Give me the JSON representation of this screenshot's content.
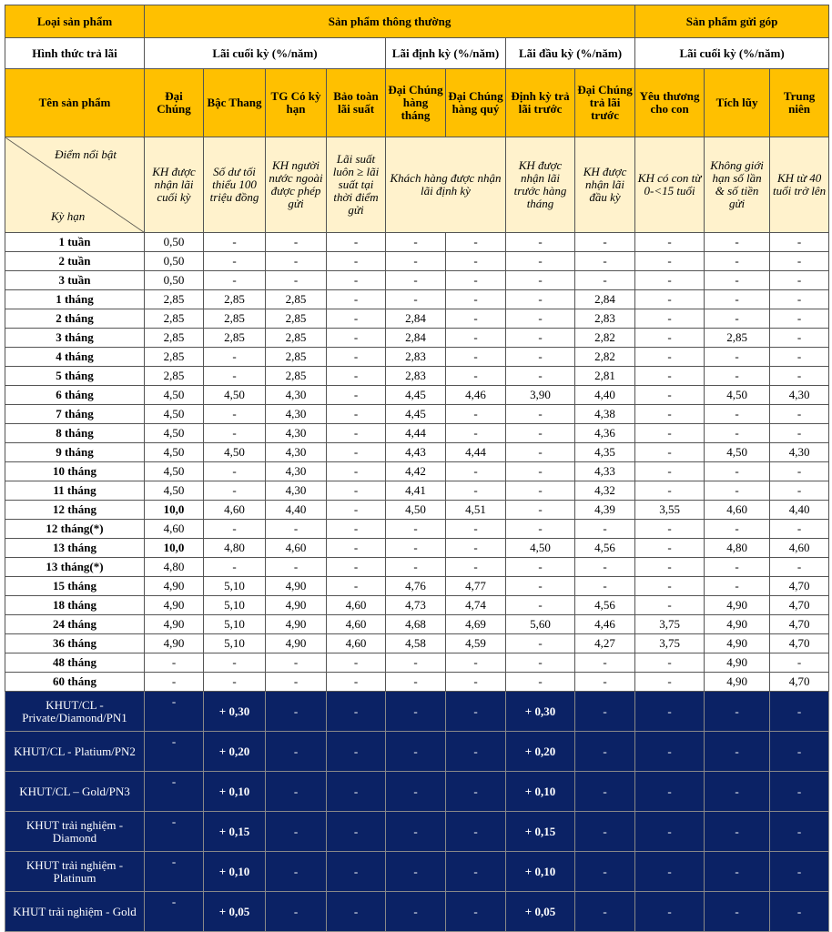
{
  "header": {
    "row1": {
      "label": "Loại sản phẩm",
      "regular": "Sản phẩm thông thường",
      "installment": "Sản phẩm gửi góp"
    },
    "row2": {
      "label": "Hình thức trả lãi",
      "groups": [
        "Lãi cuối kỳ (%/năm)",
        "Lãi định kỳ (%/năm)",
        "Lãi đầu kỳ (%/năm)",
        "Lãi cuối kỳ (%/năm)"
      ]
    },
    "row3": {
      "label": "Tên sản phẩm",
      "products": [
        "Đại Chúng",
        "Bậc Thang",
        "TG Có kỳ hạn",
        "Bảo toàn lãi suất",
        "Đại Chúng hàng tháng",
        "Đại Chúng hàng quý",
        "Định kỳ trả lãi trước",
        "Đại Chúng trả lãi trước",
        "Yêu thương cho con",
        "Tích lũy",
        "Trung niên"
      ]
    },
    "row4": {
      "highlight_label": "Điểm nổi bật",
      "term_label": "Kỳ hạn",
      "highlights": [
        "KH được nhận lãi cuối kỳ",
        "Số dư tối thiểu 100 triệu đồng",
        "KH người nước ngoài được phép gửi",
        "Lãi suất luôn ≥ lãi suất tại thời điểm gửi",
        "Khách hàng được nhận lãi định kỳ",
        "KH được nhận lãi trước hàng tháng",
        "KH được nhận lãi đầu kỳ",
        "KH có con từ 0-<15 tuổi",
        "Không giới hạn số lần & số tiền gửi",
        "KH từ 40 tuổi trở lên"
      ]
    }
  },
  "rows": [
    {
      "term": "1 tuần",
      "values": [
        "0,50",
        "-",
        "-",
        "-",
        "-",
        "-",
        "-",
        "-",
        "-",
        "-",
        "-"
      ]
    },
    {
      "term": "2 tuần",
      "values": [
        "0,50",
        "-",
        "-",
        "-",
        "-",
        "-",
        "-",
        "-",
        "-",
        "-",
        "-"
      ]
    },
    {
      "term": "3 tuần",
      "values": [
        "0,50",
        "-",
        "-",
        "-",
        "-",
        "-",
        "-",
        "-",
        "-",
        "-",
        "-"
      ]
    },
    {
      "term": "1 tháng",
      "values": [
        "2,85",
        "2,85",
        "2,85",
        "-",
        "-",
        "-",
        "-",
        "2,84",
        "-",
        "-",
        "-"
      ]
    },
    {
      "term": "2 tháng",
      "values": [
        "2,85",
        "2,85",
        "2,85",
        "-",
        "2,84",
        "-",
        "-",
        "2,83",
        "-",
        "-",
        "-"
      ]
    },
    {
      "term": "3 tháng",
      "values": [
        "2,85",
        "2,85",
        "2,85",
        "-",
        "2,84",
        "-",
        "-",
        "2,82",
        "-",
        "2,85",
        "-"
      ]
    },
    {
      "term": "4 tháng",
      "values": [
        "2,85",
        "-",
        "2,85",
        "-",
        "2,83",
        "-",
        "-",
        "2,82",
        "-",
        "-",
        "-"
      ]
    },
    {
      "term": "5 tháng",
      "values": [
        "2,85",
        "-",
        "2,85",
        "-",
        "2,83",
        "-",
        "-",
        "2,81",
        "-",
        "-",
        "-"
      ]
    },
    {
      "term": "6 tháng",
      "values": [
        "4,50",
        "4,50",
        "4,30",
        "-",
        "4,45",
        "4,46",
        "3,90",
        "4,40",
        "-",
        "4,50",
        "4,30"
      ]
    },
    {
      "term": "7 tháng",
      "values": [
        "4,50",
        "-",
        "4,30",
        "-",
        "4,45",
        "-",
        "-",
        "4,38",
        "-",
        "-",
        "-"
      ]
    },
    {
      "term": "8 tháng",
      "values": [
        "4,50",
        "-",
        "4,30",
        "-",
        "4,44",
        "-",
        "-",
        "4,36",
        "-",
        "-",
        "-"
      ]
    },
    {
      "term": "9 tháng",
      "values": [
        "4,50",
        "4,50",
        "4,30",
        "-",
        "4,43",
        "4,44",
        "-",
        "4,35",
        "-",
        "4,50",
        "4,30"
      ]
    },
    {
      "term": "10 tháng",
      "values": [
        "4,50",
        "-",
        "4,30",
        "-",
        "4,42",
        "-",
        "-",
        "4,33",
        "-",
        "-",
        "-"
      ]
    },
    {
      "term": "11 tháng",
      "values": [
        "4,50",
        "-",
        "4,30",
        "-",
        "4,41",
        "-",
        "-",
        "4,32",
        "-",
        "-",
        "-"
      ]
    },
    {
      "term": "12 tháng",
      "values": [
        "10,0",
        "4,60",
        "4,40",
        "-",
        "4,50",
        "4,51",
        "-",
        "4,39",
        "3,55",
        "4,60",
        "4,40"
      ]
    },
    {
      "term": "12 tháng(*)",
      "values": [
        "4,60",
        "-",
        "-",
        "-",
        "-",
        "-",
        "-",
        "-",
        "-",
        "-",
        "-"
      ]
    },
    {
      "term": "13 tháng",
      "values": [
        "10,0",
        "4,80",
        "4,60",
        "-",
        "-",
        "-",
        "4,50",
        "4,56",
        "-",
        "4,80",
        "4,60"
      ]
    },
    {
      "term": "13 tháng(*)",
      "values": [
        "4,80",
        "-",
        "-",
        "-",
        "-",
        "-",
        "-",
        "-",
        "-",
        "-",
        "-"
      ]
    },
    {
      "term": "15 tháng",
      "values": [
        "4,90",
        "5,10",
        "4,90",
        "-",
        "4,76",
        "4,77",
        "-",
        "-",
        "-",
        "-",
        "4,70"
      ]
    },
    {
      "term": "18 tháng",
      "values": [
        "4,90",
        "5,10",
        "4,90",
        "4,60",
        "4,73",
        "4,74",
        "-",
        "4,56",
        "-",
        "4,90",
        "4,70"
      ]
    },
    {
      "term": "24 tháng",
      "values": [
        "4,90",
        "5,10",
        "4,90",
        "4,60",
        "4,68",
        "4,69",
        "5,60",
        "4,46",
        "3,75",
        "4,90",
        "4,70"
      ]
    },
    {
      "term": "36 tháng",
      "values": [
        "4,90",
        "5,10",
        "4,90",
        "4,60",
        "4,58",
        "4,59",
        "-",
        "4,27",
        "3,75",
        "4,90",
        "4,70"
      ]
    },
    {
      "term": "48 tháng",
      "values": [
        "-",
        "-",
        "-",
        "-",
        "-",
        "-",
        "-",
        "-",
        "-",
        "4,90",
        "-"
      ]
    },
    {
      "term": "60 tháng",
      "values": [
        "-",
        "-",
        "-",
        "-",
        "-",
        "-",
        "-",
        "-",
        "-",
        "4,90",
        "4,70"
      ]
    }
  ],
  "tiers": [
    {
      "name": "KHUT/CL - Private/Diamond/PN1",
      "values": [
        "-",
        "+ 0,30",
        "-",
        "-",
        "-",
        "-",
        "+ 0,30",
        "-",
        "-",
        "-",
        "-"
      ]
    },
    {
      "name": "KHUT/CL - Platium/PN2",
      "values": [
        "-",
        "+ 0,20",
        "-",
        "-",
        "-",
        "-",
        "+ 0,20",
        "-",
        "-",
        "-",
        "-"
      ]
    },
    {
      "name": "KHUT/CL – Gold/PN3",
      "values": [
        "-",
        "+ 0,10",
        "-",
        "-",
        "-",
        "-",
        "+ 0,10",
        "-",
        "-",
        "-",
        "-"
      ]
    },
    {
      "name": "KHUT trải nghiệm - Diamond",
      "values": [
        "-",
        "+ 0,15",
        "-",
        "-",
        "-",
        "-",
        "+ 0,15",
        "-",
        "-",
        "-",
        "-"
      ]
    },
    {
      "name": "KHUT trải nghiệm - Platinum",
      "values": [
        "-",
        "+ 0,10",
        "-",
        "-",
        "-",
        "-",
        "+ 0,10",
        "-",
        "-",
        "-",
        "-"
      ]
    },
    {
      "name": "KHUT trải nghiệm - Gold",
      "values": [
        "-",
        "+ 0,05",
        "-",
        "-",
        "-",
        "-",
        "+ 0,05",
        "-",
        "-",
        "-",
        "-"
      ]
    }
  ]
}
